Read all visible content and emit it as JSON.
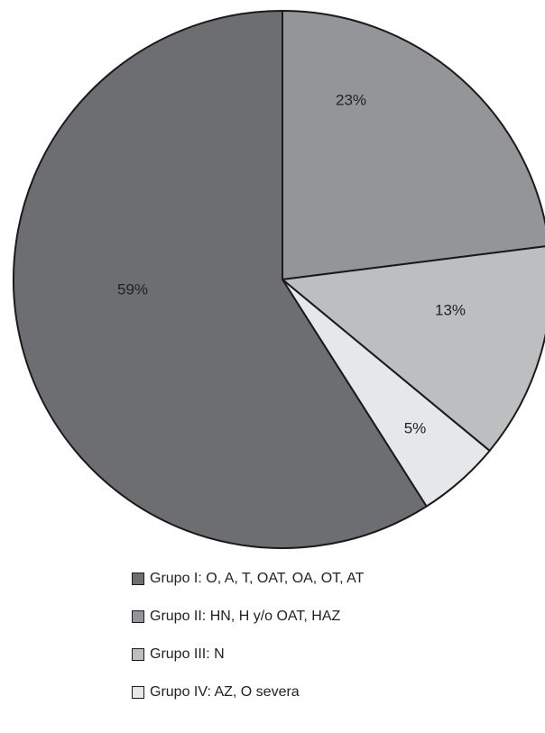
{
  "chart_data": {
    "type": "pie",
    "title": "",
    "series": [
      {
        "name": "Grupo II: HN, H y/o OAT, HAZ",
        "value": 23,
        "label": "23%",
        "color": "#939598"
      },
      {
        "name": "Grupo III: N",
        "value": 13,
        "label": "13%",
        "color": "#bcbec0"
      },
      {
        "name": "Grupo IV: AZ, O severa",
        "value": 5,
        "label": "5%",
        "color": "#e6e7e8"
      },
      {
        "name": "Grupo I: O, A, T, OAT, OA, OT, AT",
        "value": 59,
        "label": "59%",
        "color": "#6d6e71"
      }
    ],
    "legend_placement": "bottom",
    "legend": [
      {
        "label": "Grupo I: O, A, T, OAT, OA, OT, AT",
        "color": "#6d6e71"
      },
      {
        "label": "Grupo II: HN, H y/o OAT, HAZ",
        "color": "#939598"
      },
      {
        "label": "Grupo III: N",
        "color": "#bcbec0"
      },
      {
        "label": "Grupo IV: AZ, O severa",
        "color": "#e6e7e8"
      }
    ]
  }
}
